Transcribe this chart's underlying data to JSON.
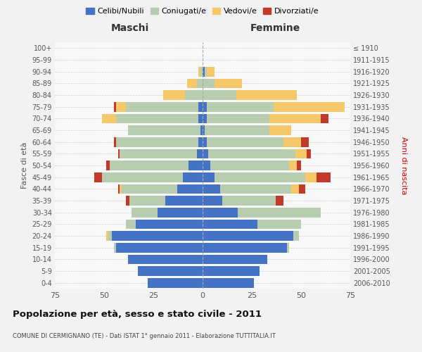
{
  "age_groups": [
    "0-4",
    "5-9",
    "10-14",
    "15-19",
    "20-24",
    "25-29",
    "30-34",
    "35-39",
    "40-44",
    "45-49",
    "50-54",
    "55-59",
    "60-64",
    "65-69",
    "70-74",
    "75-79",
    "80-84",
    "85-89",
    "90-94",
    "95-99",
    "100+"
  ],
  "birth_years": [
    "2006-2010",
    "2001-2005",
    "1996-2000",
    "1991-1995",
    "1986-1990",
    "1981-1985",
    "1976-1980",
    "1971-1975",
    "1966-1970",
    "1961-1965",
    "1956-1960",
    "1951-1955",
    "1946-1950",
    "1941-1945",
    "1936-1940",
    "1931-1935",
    "1926-1930",
    "1921-1925",
    "1916-1920",
    "1911-1915",
    "≤ 1910"
  ],
  "colors": {
    "celibi": "#4472C4",
    "coniugati": "#B8CCB0",
    "vedovi": "#F5C96A",
    "divorziati": "#C0392B"
  },
  "maschi": {
    "celibi": [
      28,
      33,
      38,
      44,
      46,
      34,
      23,
      19,
      13,
      10,
      7,
      3,
      2,
      1,
      2,
      2,
      0,
      0,
      0,
      0,
      0
    ],
    "coniugati": [
      0,
      0,
      0,
      1,
      2,
      5,
      13,
      18,
      28,
      41,
      40,
      39,
      42,
      37,
      42,
      37,
      9,
      3,
      1,
      0,
      0
    ],
    "vedovi": [
      0,
      0,
      0,
      0,
      1,
      0,
      0,
      0,
      1,
      0,
      0,
      0,
      0,
      0,
      7,
      5,
      11,
      5,
      1,
      0,
      0
    ],
    "divorziati": [
      0,
      0,
      0,
      0,
      0,
      0,
      0,
      2,
      1,
      4,
      2,
      1,
      1,
      0,
      0,
      1,
      0,
      0,
      0,
      0,
      0
    ]
  },
  "femmine": {
    "celibi": [
      26,
      29,
      33,
      43,
      46,
      28,
      18,
      10,
      9,
      6,
      4,
      3,
      2,
      1,
      2,
      2,
      0,
      0,
      1,
      0,
      0
    ],
    "coniugati": [
      0,
      0,
      0,
      1,
      3,
      22,
      42,
      27,
      36,
      46,
      40,
      44,
      39,
      33,
      32,
      34,
      17,
      6,
      1,
      0,
      0
    ],
    "vedovi": [
      0,
      0,
      0,
      0,
      0,
      0,
      0,
      0,
      4,
      6,
      4,
      6,
      9,
      11,
      26,
      36,
      31,
      14,
      4,
      0,
      0
    ],
    "divorziati": [
      0,
      0,
      0,
      0,
      0,
      0,
      0,
      4,
      3,
      7,
      2,
      2,
      4,
      0,
      4,
      0,
      0,
      0,
      0,
      0,
      0
    ]
  },
  "title": "Popolazione per età, sesso e stato civile - 2011",
  "subtitle": "COMUNE DI CERMIGNANO (TE) - Dati ISTAT 1° gennaio 2011 - Elaborazione TUTTITALIA.IT",
  "xlabel_left": "Maschi",
  "xlabel_right": "Femmine",
  "ylabel_left": "Fasce di età",
  "ylabel_right": "Anni di nascita",
  "xlim": 75,
  "legend_labels": [
    "Celibi/Nubili",
    "Coniugati/e",
    "Vedovi/e",
    "Divorziati/e"
  ],
  "bg_color": "#F2F2F2",
  "plot_bg_color": "#F8F8F8"
}
